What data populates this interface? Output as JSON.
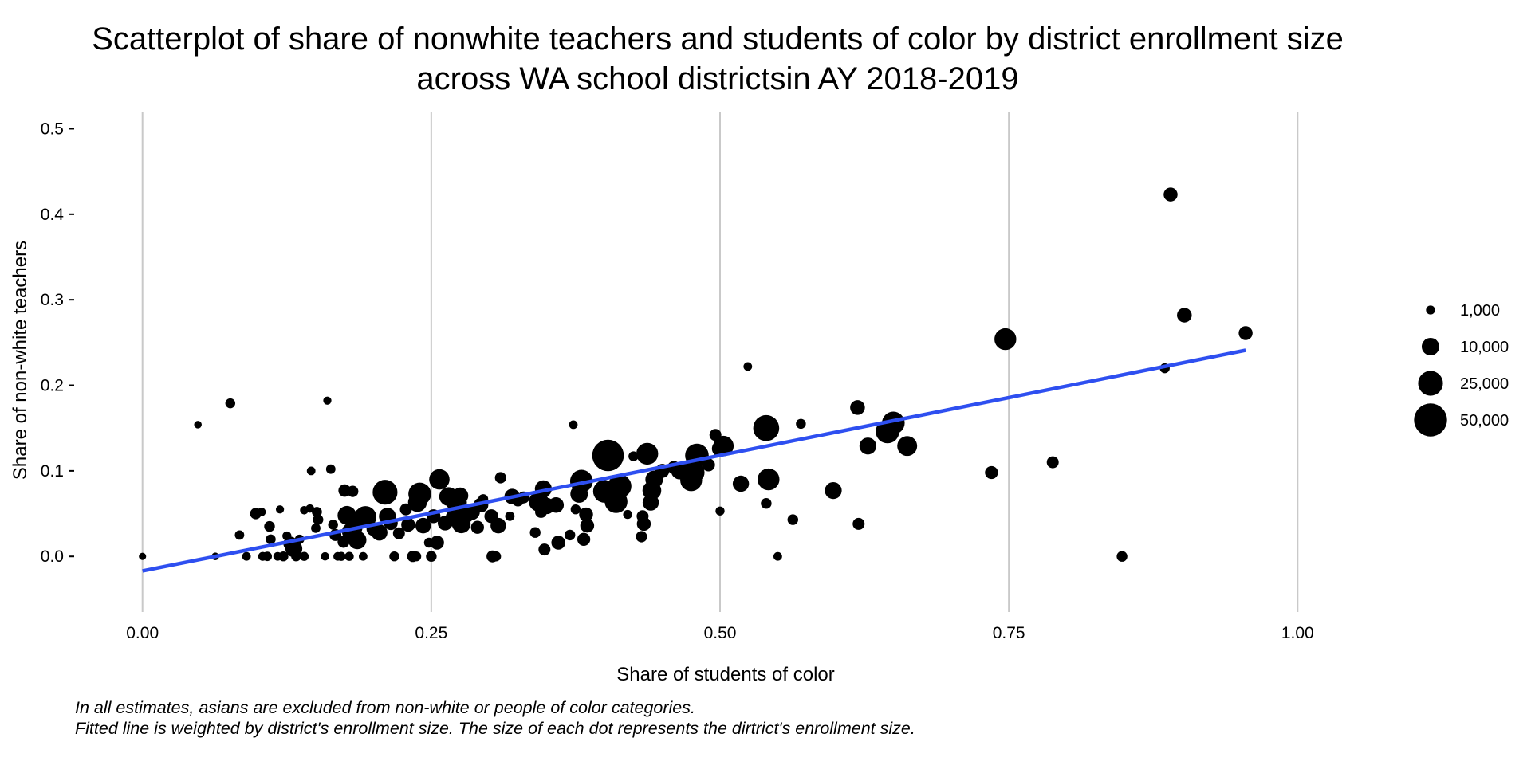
{
  "chart_data": {
    "type": "scatter",
    "title_lines": [
      "Scatterplot of share of nonwhite teachers and students of color by district enrollment size",
      "across WA school districtsin AY 2018-2019"
    ],
    "xlabel": "Share of students of color",
    "ylabel": "Share of non-white teachers",
    "xlim": [
      -0.035,
      1.035
    ],
    "ylim": [
      -0.065,
      0.52
    ],
    "x_ticks": [
      0.0,
      0.25,
      0.5,
      0.75,
      1.0
    ],
    "x_tick_labels": [
      "0.00",
      "0.25",
      "0.50",
      "0.75",
      "1.00"
    ],
    "y_ticks": [
      0.0,
      0.1,
      0.2,
      0.3,
      0.4,
      0.5
    ],
    "y_tick_labels": [
      "0.0",
      "0.1",
      "0.2",
      "0.3",
      "0.4",
      "0.5"
    ],
    "grid": "vertical major lines only",
    "legend_placement": "right",
    "legend": [
      {
        "label": "1,000",
        "value": 1000
      },
      {
        "label": "10,000",
        "value": 10000
      },
      {
        "label": "25,000",
        "value": 25000
      },
      {
        "label": "50,000",
        "value": 50000
      }
    ],
    "fit_line": {
      "x": [
        0.0,
        0.955
      ],
      "y": [
        -0.017,
        0.241
      ]
    },
    "points": [
      {
        "x": 0.0,
        "y": 0.0,
        "size": 300
      },
      {
        "x": 0.048,
        "y": 0.154,
        "size": 400
      },
      {
        "x": 0.063,
        "y": 0.0,
        "size": 400
      },
      {
        "x": 0.076,
        "y": 0.179,
        "size": 1500
      },
      {
        "x": 0.084,
        "y": 0.025,
        "size": 1200
      },
      {
        "x": 0.09,
        "y": 0.0,
        "size": 800
      },
      {
        "x": 0.098,
        "y": 0.05,
        "size": 2500
      },
      {
        "x": 0.103,
        "y": 0.052,
        "size": 800
      },
      {
        "x": 0.104,
        "y": 0.0,
        "size": 900
      },
      {
        "x": 0.108,
        "y": 0.0,
        "size": 1200
      },
      {
        "x": 0.11,
        "y": 0.035,
        "size": 2000
      },
      {
        "x": 0.111,
        "y": 0.02,
        "size": 1500
      },
      {
        "x": 0.117,
        "y": 0.0,
        "size": 800
      },
      {
        "x": 0.119,
        "y": 0.055,
        "size": 600
      },
      {
        "x": 0.122,
        "y": 0.0,
        "size": 1500
      },
      {
        "x": 0.125,
        "y": 0.024,
        "size": 1000
      },
      {
        "x": 0.128,
        "y": 0.015,
        "size": 5000
      },
      {
        "x": 0.131,
        "y": 0.009,
        "size": 9000
      },
      {
        "x": 0.133,
        "y": 0.0,
        "size": 1500
      },
      {
        "x": 0.136,
        "y": 0.02,
        "size": 1200
      },
      {
        "x": 0.14,
        "y": 0.0,
        "size": 1000
      },
      {
        "x": 0.14,
        "y": 0.054,
        "size": 700
      },
      {
        "x": 0.145,
        "y": 0.056,
        "size": 700
      },
      {
        "x": 0.146,
        "y": 0.1,
        "size": 800
      },
      {
        "x": 0.15,
        "y": 0.033,
        "size": 1200
      },
      {
        "x": 0.151,
        "y": 0.052,
        "size": 1600
      },
      {
        "x": 0.152,
        "y": 0.043,
        "size": 1800
      },
      {
        "x": 0.158,
        "y": 0.0,
        "size": 700
      },
      {
        "x": 0.16,
        "y": 0.182,
        "size": 600
      },
      {
        "x": 0.163,
        "y": 0.102,
        "size": 1200
      },
      {
        "x": 0.165,
        "y": 0.037,
        "size": 1500
      },
      {
        "x": 0.167,
        "y": 0.025,
        "size": 3000
      },
      {
        "x": 0.169,
        "y": 0.0,
        "size": 800
      },
      {
        "x": 0.172,
        "y": 0.0,
        "size": 1000
      },
      {
        "x": 0.174,
        "y": 0.017,
        "size": 3000
      },
      {
        "x": 0.175,
        "y": 0.077,
        "size": 3500
      },
      {
        "x": 0.177,
        "y": 0.048,
        "size": 12000
      },
      {
        "x": 0.179,
        "y": 0.0,
        "size": 1000
      },
      {
        "x": 0.18,
        "y": 0.029,
        "size": 9000
      },
      {
        "x": 0.182,
        "y": 0.076,
        "size": 2500
      },
      {
        "x": 0.184,
        "y": 0.033,
        "size": 6000
      },
      {
        "x": 0.186,
        "y": 0.019,
        "size": 11000
      },
      {
        "x": 0.19,
        "y": 0.045,
        "size": 12000
      },
      {
        "x": 0.191,
        "y": 0.0,
        "size": 800
      },
      {
        "x": 0.193,
        "y": 0.046,
        "size": 18000
      },
      {
        "x": 0.2,
        "y": 0.032,
        "size": 5000
      },
      {
        "x": 0.205,
        "y": 0.028,
        "size": 8000
      },
      {
        "x": 0.21,
        "y": 0.075,
        "size": 25000
      },
      {
        "x": 0.212,
        "y": 0.047,
        "size": 9000
      },
      {
        "x": 0.215,
        "y": 0.039,
        "size": 5000
      },
      {
        "x": 0.218,
        "y": 0.0,
        "size": 1500
      },
      {
        "x": 0.222,
        "y": 0.027,
        "size": 3000
      },
      {
        "x": 0.228,
        "y": 0.055,
        "size": 3000
      },
      {
        "x": 0.23,
        "y": 0.037,
        "size": 5000
      },
      {
        "x": 0.234,
        "y": 0.0,
        "size": 2500
      },
      {
        "x": 0.237,
        "y": 0.0,
        "size": 1500
      },
      {
        "x": 0.238,
        "y": 0.063,
        "size": 12000
      },
      {
        "x": 0.24,
        "y": 0.073,
        "size": 20000
      },
      {
        "x": 0.243,
        "y": 0.036,
        "size": 7000
      },
      {
        "x": 0.248,
        "y": 0.016,
        "size": 1500
      },
      {
        "x": 0.25,
        "y": 0.0,
        "size": 2000
      },
      {
        "x": 0.252,
        "y": 0.047,
        "size": 5000
      },
      {
        "x": 0.255,
        "y": 0.016,
        "size": 5000
      },
      {
        "x": 0.257,
        "y": 0.09,
        "size": 15000
      },
      {
        "x": 0.262,
        "y": 0.039,
        "size": 6000
      },
      {
        "x": 0.265,
        "y": 0.07,
        "size": 12000
      },
      {
        "x": 0.27,
        "y": 0.045,
        "size": 10000
      },
      {
        "x": 0.272,
        "y": 0.063,
        "size": 15000
      },
      {
        "x": 0.275,
        "y": 0.071,
        "size": 8000
      },
      {
        "x": 0.276,
        "y": 0.038,
        "size": 12000
      },
      {
        "x": 0.28,
        "y": 0.049,
        "size": 9000
      },
      {
        "x": 0.285,
        "y": 0.052,
        "size": 8000
      },
      {
        "x": 0.29,
        "y": 0.034,
        "size": 4000
      },
      {
        "x": 0.293,
        "y": 0.06,
        "size": 6000
      },
      {
        "x": 0.295,
        "y": 0.067,
        "size": 1500
      },
      {
        "x": 0.302,
        "y": 0.047,
        "size": 5000
      },
      {
        "x": 0.303,
        "y": 0.0,
        "size": 3000
      },
      {
        "x": 0.306,
        "y": 0.0,
        "size": 1600
      },
      {
        "x": 0.308,
        "y": 0.036,
        "size": 7000
      },
      {
        "x": 0.31,
        "y": 0.092,
        "size": 2500
      },
      {
        "x": 0.318,
        "y": 0.047,
        "size": 1200
      },
      {
        "x": 0.32,
        "y": 0.07,
        "size": 7000
      },
      {
        "x": 0.325,
        "y": 0.066,
        "size": 4000
      },
      {
        "x": 0.33,
        "y": 0.069,
        "size": 3000
      },
      {
        "x": 0.34,
        "y": 0.028,
        "size": 2000
      },
      {
        "x": 0.343,
        "y": 0.064,
        "size": 14000
      },
      {
        "x": 0.345,
        "y": 0.052,
        "size": 3000
      },
      {
        "x": 0.347,
        "y": 0.079,
        "size": 9000
      },
      {
        "x": 0.348,
        "y": 0.008,
        "size": 3000
      },
      {
        "x": 0.35,
        "y": 0.059,
        "size": 8000
      },
      {
        "x": 0.358,
        "y": 0.06,
        "size": 7000
      },
      {
        "x": 0.36,
        "y": 0.016,
        "size": 5000
      },
      {
        "x": 0.37,
        "y": 0.025,
        "size": 2000
      },
      {
        "x": 0.373,
        "y": 0.154,
        "size": 800
      },
      {
        "x": 0.375,
        "y": 0.055,
        "size": 1500
      },
      {
        "x": 0.378,
        "y": 0.073,
        "size": 10000
      },
      {
        "x": 0.38,
        "y": 0.088,
        "size": 20000
      },
      {
        "x": 0.382,
        "y": 0.02,
        "size": 4000
      },
      {
        "x": 0.384,
        "y": 0.049,
        "size": 5000
      },
      {
        "x": 0.385,
        "y": 0.036,
        "size": 5000
      },
      {
        "x": 0.4,
        "y": 0.076,
        "size": 20000
      },
      {
        "x": 0.403,
        "y": 0.118,
        "size": 45000
      },
      {
        "x": 0.41,
        "y": 0.064,
        "size": 20000
      },
      {
        "x": 0.413,
        "y": 0.082,
        "size": 22000
      },
      {
        "x": 0.42,
        "y": 0.049,
        "size": 1000
      },
      {
        "x": 0.425,
        "y": 0.117,
        "size": 1500
      },
      {
        "x": 0.432,
        "y": 0.023,
        "size": 2500
      },
      {
        "x": 0.433,
        "y": 0.047,
        "size": 3000
      },
      {
        "x": 0.434,
        "y": 0.038,
        "size": 5000
      },
      {
        "x": 0.437,
        "y": 0.12,
        "size": 18000
      },
      {
        "x": 0.44,
        "y": 0.063,
        "size": 8000
      },
      {
        "x": 0.441,
        "y": 0.077,
        "size": 12000
      },
      {
        "x": 0.443,
        "y": 0.09,
        "size": 10000
      },
      {
        "x": 0.45,
        "y": 0.1,
        "size": 5000
      },
      {
        "x": 0.46,
        "y": 0.104,
        "size": 4000
      },
      {
        "x": 0.465,
        "y": 0.1,
        "size": 9000
      },
      {
        "x": 0.47,
        "y": 0.1,
        "size": 14000
      },
      {
        "x": 0.475,
        "y": 0.089,
        "size": 18000
      },
      {
        "x": 0.478,
        "y": 0.098,
        "size": 14000
      },
      {
        "x": 0.48,
        "y": 0.118,
        "size": 22000
      },
      {
        "x": 0.49,
        "y": 0.107,
        "size": 4000
      },
      {
        "x": 0.496,
        "y": 0.142,
        "size": 3000
      },
      {
        "x": 0.5,
        "y": 0.126,
        "size": 8000
      },
      {
        "x": 0.5,
        "y": 0.053,
        "size": 1000
      },
      {
        "x": 0.503,
        "y": 0.129,
        "size": 15000
      },
      {
        "x": 0.518,
        "y": 0.085,
        "size": 8000
      },
      {
        "x": 0.524,
        "y": 0.222,
        "size": 800
      },
      {
        "x": 0.54,
        "y": 0.062,
        "size": 2000
      },
      {
        "x": 0.54,
        "y": 0.15,
        "size": 28000
      },
      {
        "x": 0.542,
        "y": 0.09,
        "size": 18000
      },
      {
        "x": 0.55,
        "y": 0.0,
        "size": 800
      },
      {
        "x": 0.563,
        "y": 0.043,
        "size": 2000
      },
      {
        "x": 0.57,
        "y": 0.155,
        "size": 1500
      },
      {
        "x": 0.598,
        "y": 0.077,
        "size": 9000
      },
      {
        "x": 0.619,
        "y": 0.174,
        "size": 6000
      },
      {
        "x": 0.62,
        "y": 0.038,
        "size": 3000
      },
      {
        "x": 0.628,
        "y": 0.129,
        "size": 9000
      },
      {
        "x": 0.645,
        "y": 0.146,
        "size": 22000
      },
      {
        "x": 0.65,
        "y": 0.156,
        "size": 20000
      },
      {
        "x": 0.662,
        "y": 0.129,
        "size": 14000
      },
      {
        "x": 0.735,
        "y": 0.098,
        "size": 4000
      },
      {
        "x": 0.747,
        "y": 0.254,
        "size": 18000
      },
      {
        "x": 0.788,
        "y": 0.11,
        "size": 3000
      },
      {
        "x": 0.848,
        "y": 0.0,
        "size": 2000
      },
      {
        "x": 0.885,
        "y": 0.22,
        "size": 1500
      },
      {
        "x": 0.89,
        "y": 0.423,
        "size": 5000
      },
      {
        "x": 0.902,
        "y": 0.282,
        "size": 6000
      },
      {
        "x": 0.955,
        "y": 0.261,
        "size": 5000
      }
    ]
  },
  "caption_lines": [
    "In all estimates, asians are excluded from non-white or people of color categories.",
    "Fitted line is weighted by district's enrollment size. The size of each dot represents the dirtrict's enrollment size."
  ],
  "colors": {
    "points": "#000000",
    "fit_line": "#2e4ff0",
    "grid": "#c9c9c9",
    "background": "#ffffff"
  }
}
